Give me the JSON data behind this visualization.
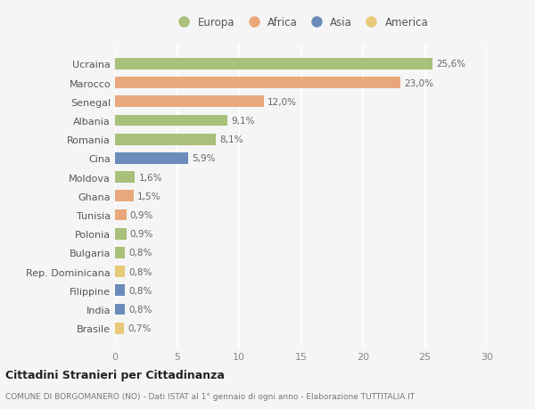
{
  "countries": [
    "Ucraina",
    "Marocco",
    "Senegal",
    "Albania",
    "Romania",
    "Cina",
    "Moldova",
    "Ghana",
    "Tunisia",
    "Polonia",
    "Bulgaria",
    "Rep. Dominicana",
    "Filippine",
    "India",
    "Brasile"
  ],
  "values": [
    25.6,
    23.0,
    12.0,
    9.1,
    8.1,
    5.9,
    1.6,
    1.5,
    0.9,
    0.9,
    0.8,
    0.8,
    0.8,
    0.8,
    0.7
  ],
  "labels": [
    "25,6%",
    "23,0%",
    "12,0%",
    "9,1%",
    "8,1%",
    "5,9%",
    "1,6%",
    "1,5%",
    "0,9%",
    "0,9%",
    "0,8%",
    "0,8%",
    "0,8%",
    "0,8%",
    "0,7%"
  ],
  "colors": [
    "#a8c07a",
    "#e8a87c",
    "#e8a87c",
    "#a8c07a",
    "#a8c07a",
    "#6b8cba",
    "#a8c07a",
    "#e8a87c",
    "#e8a87c",
    "#a8c07a",
    "#a8c07a",
    "#e8c97a",
    "#6b8cba",
    "#6b8cba",
    "#e8c97a"
  ],
  "legend_labels": [
    "Europa",
    "Africa",
    "Asia",
    "America"
  ],
  "legend_colors": [
    "#a8c07a",
    "#e8a87c",
    "#6b8cba",
    "#e8c97a"
  ],
  "xlim": [
    0,
    30
  ],
  "xticks": [
    0,
    5,
    10,
    15,
    20,
    25,
    30
  ],
  "title": "Cittadini Stranieri per Cittadinanza",
  "subtitle": "COMUNE DI BORGOMANERO (NO) - Dati ISTAT al 1° gennaio di ogni anno - Elaborazione TUTTITALIA.IT",
  "bg_color": "#f5f5f5",
  "grid_color": "#ffffff",
  "bar_height": 0.6
}
